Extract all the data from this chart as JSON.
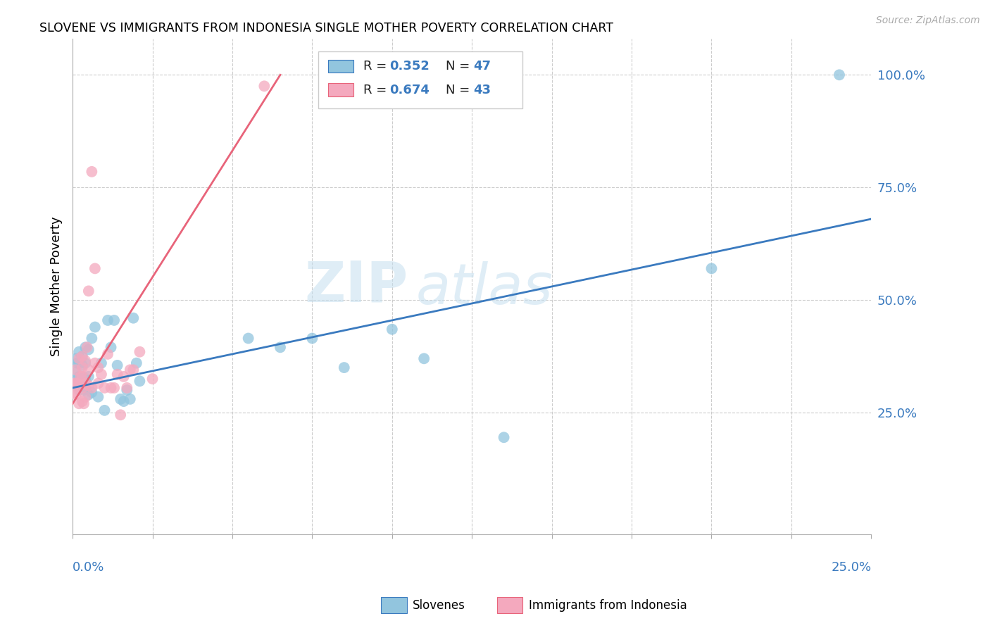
{
  "title": "SLOVENE VS IMMIGRANTS FROM INDONESIA SINGLE MOTHER POVERTY CORRELATION CHART",
  "source": "Source: ZipAtlas.com",
  "ylabel": "Single Mother Poverty",
  "yticks": [
    0.0,
    0.25,
    0.5,
    0.75,
    1.0
  ],
  "ytick_labels": [
    "",
    "25.0%",
    "50.0%",
    "75.0%",
    "100.0%"
  ],
  "xlim": [
    0.0,
    0.25
  ],
  "ylim": [
    -0.02,
    1.08
  ],
  "legend_label1": "Slovenes",
  "legend_label2": "Immigrants from Indonesia",
  "R1": 0.352,
  "N1": 47,
  "R2": 0.674,
  "N2": 43,
  "color_blue": "#92c5de",
  "color_pink": "#f4a9be",
  "line_color_blue": "#3a7abf",
  "line_color_pink": "#e8647a",
  "watermark_zip": "ZIP",
  "watermark_atlas": "atlas",
  "blue_x": [
    0.0005,
    0.001,
    0.001,
    0.0015,
    0.0015,
    0.002,
    0.002,
    0.002,
    0.002,
    0.003,
    0.003,
    0.003,
    0.003,
    0.0035,
    0.004,
    0.004,
    0.004,
    0.004,
    0.005,
    0.005,
    0.005,
    0.006,
    0.006,
    0.007,
    0.008,
    0.009,
    0.01,
    0.011,
    0.012,
    0.013,
    0.014,
    0.015,
    0.016,
    0.017,
    0.018,
    0.019,
    0.02,
    0.021,
    0.055,
    0.065,
    0.075,
    0.085,
    0.1,
    0.11,
    0.135,
    0.2,
    0.24
  ],
  "blue_y": [
    0.32,
    0.34,
    0.37,
    0.31,
    0.36,
    0.3,
    0.33,
    0.36,
    0.385,
    0.31,
    0.33,
    0.355,
    0.375,
    0.3,
    0.305,
    0.325,
    0.36,
    0.395,
    0.29,
    0.33,
    0.39,
    0.295,
    0.415,
    0.44,
    0.285,
    0.36,
    0.255,
    0.455,
    0.395,
    0.455,
    0.355,
    0.28,
    0.275,
    0.3,
    0.28,
    0.46,
    0.36,
    0.32,
    0.415,
    0.395,
    0.415,
    0.35,
    0.435,
    0.37,
    0.195,
    0.57,
    1.0
  ],
  "pink_x": [
    0.0003,
    0.0005,
    0.001,
    0.001,
    0.001,
    0.0015,
    0.002,
    0.002,
    0.002,
    0.0025,
    0.003,
    0.003,
    0.003,
    0.003,
    0.003,
    0.0035,
    0.004,
    0.004,
    0.004,
    0.0045,
    0.005,
    0.005,
    0.005,
    0.006,
    0.006,
    0.007,
    0.007,
    0.008,
    0.008,
    0.009,
    0.01,
    0.011,
    0.012,
    0.013,
    0.014,
    0.015,
    0.016,
    0.017,
    0.018,
    0.019,
    0.021,
    0.025,
    0.06
  ],
  "pink_y": [
    0.295,
    0.315,
    0.29,
    0.315,
    0.345,
    0.315,
    0.27,
    0.31,
    0.37,
    0.33,
    0.275,
    0.305,
    0.33,
    0.35,
    0.375,
    0.27,
    0.285,
    0.315,
    0.365,
    0.395,
    0.31,
    0.345,
    0.52,
    0.305,
    0.785,
    0.36,
    0.57,
    0.315,
    0.35,
    0.335,
    0.305,
    0.38,
    0.305,
    0.305,
    0.335,
    0.245,
    0.33,
    0.305,
    0.345,
    0.345,
    0.385,
    0.325,
    0.975
  ],
  "blue_trend": [
    0.0,
    0.25,
    0.305,
    0.68
  ],
  "pink_trend": [
    0.0,
    0.065,
    0.27,
    1.0
  ]
}
